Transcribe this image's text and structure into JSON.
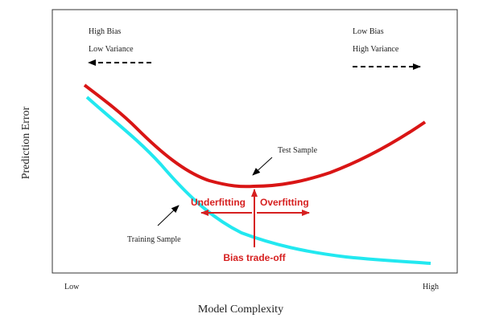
{
  "labels": {
    "top_left": [
      "High Bias",
      "Low Variance"
    ],
    "top_right": [
      "Low Bias",
      "High Variance"
    ]
  },
  "axes": {
    "y_label": "Prediction Error",
    "x_label": "Model Complexity",
    "x_low": "Low",
    "x_high": "High"
  },
  "curves": {
    "test": "Test Sample",
    "training": "Training Sample"
  },
  "annotations": {
    "underfitting": "Underfitting",
    "overfitting": "Overfitting",
    "tradeoff": "Bias trade-off"
  }
}
